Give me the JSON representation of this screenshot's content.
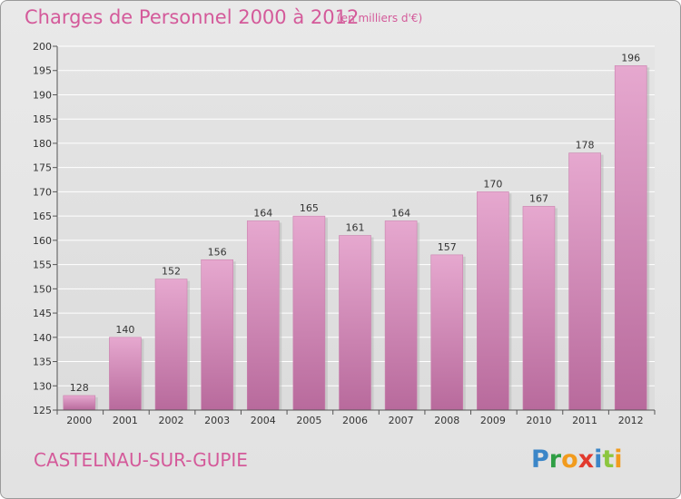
{
  "chart_data": {
    "type": "bar",
    "title": "Charges de Personnel 2000 à 2012",
    "subtitle": "(en milliers d'€)",
    "categories": [
      "2000",
      "2001",
      "2002",
      "2003",
      "2004",
      "2005",
      "2006",
      "2007",
      "2008",
      "2009",
      "2010",
      "2011",
      "2012"
    ],
    "values": [
      128,
      140,
      152,
      156,
      164,
      165,
      161,
      164,
      157,
      170,
      167,
      178,
      196
    ],
    "data_labels": [
      "128",
      "140",
      "152",
      "156",
      "164",
      "165",
      "161",
      "164",
      "157",
      "170",
      "167",
      "178",
      "196"
    ],
    "ylim": [
      125,
      200
    ],
    "yticks": [
      "125",
      "130",
      "135",
      "140",
      "145",
      "150",
      "155",
      "160",
      "165",
      "170",
      "175",
      "180",
      "185",
      "190",
      "195",
      "200"
    ],
    "xlabel": "",
    "ylabel": "",
    "grid": true,
    "bar_color_top": "#e6a8cf",
    "bar_color_bottom": "#b86a9c"
  },
  "footer": {
    "commune": "CASTELNAU-SUR-GUPIE",
    "logo_letters": [
      {
        "char": "P",
        "color": "#3b86c8"
      },
      {
        "char": "r",
        "color": "#2f9e44"
      },
      {
        "char": "o",
        "color": "#f29b1d"
      },
      {
        "char": "x",
        "color": "#e23a2e"
      },
      {
        "char": "i",
        "color": "#3b86c8"
      },
      {
        "char": "t",
        "color": "#8cc63f"
      },
      {
        "char": "i",
        "color": "#f29b1d"
      }
    ]
  },
  "colors": {
    "accent": "#d45a9a",
    "background": "#e6e6e6"
  }
}
